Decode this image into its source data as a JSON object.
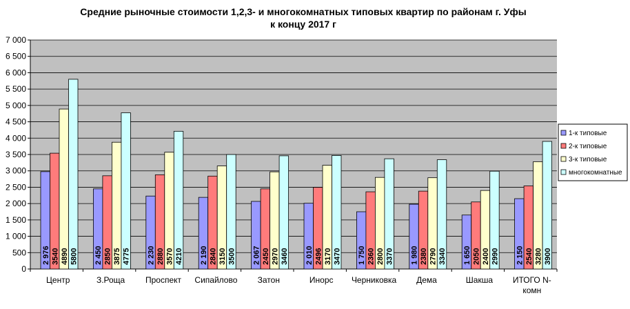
{
  "chart_data": {
    "type": "bar",
    "title": "Средние рыночные стоимости 1,2,3- и многокомнатных типовых квартир по районам г. Уфы",
    "subtitle": "к концу 2017 г",
    "xlabel": "",
    "ylabel": "",
    "ylim": [
      0,
      7000
    ],
    "yticks": [
      "0",
      "500",
      "1 000",
      "1 500",
      "2 000",
      "2 500",
      "3 000",
      "3 500",
      "4 000",
      "4 500",
      "5 000",
      "5 500",
      "6 000",
      "6 500",
      "7 000"
    ],
    "ytick_values": [
      0,
      500,
      1000,
      1500,
      2000,
      2500,
      3000,
      3500,
      4000,
      4500,
      5000,
      5500,
      6000,
      6500,
      7000
    ],
    "grid": true,
    "legend_position": "right",
    "categories": [
      [
        "Центр"
      ],
      [
        "З.Роща"
      ],
      [
        "Проспект"
      ],
      [
        "Сипайлово"
      ],
      [
        "Затон"
      ],
      [
        "Инорс"
      ],
      [
        "Черниковка"
      ],
      [
        "Дема"
      ],
      [
        "Шакша"
      ],
      [
        "ИТОГО N-",
        "комн"
      ]
    ],
    "series": [
      {
        "name": "1-к типовые",
        "color": "#9999ff",
        "values": [
          2976,
          2450,
          2230,
          2190,
          2067,
          2010,
          1750,
          1980,
          1650,
          2150
        ],
        "labels": [
          "2 976",
          "2 450",
          "2 230",
          "2 190",
          "2 067",
          "2 010",
          "1 750",
          "1 980",
          "1 650",
          "2 150"
        ]
      },
      {
        "name": "2-к типовые",
        "color": "#ff7b7b",
        "values": [
          3540,
          2850,
          2880,
          2840,
          2450,
          2496,
          2360,
          2380,
          2050,
          2540
        ],
        "labels": [
          "3540",
          "2850",
          "2880",
          "2840",
          "2450",
          "2496",
          "2360",
          "2380",
          "2050",
          "2540"
        ]
      },
      {
        "name": "3-к типовые",
        "color": "#ffffcc",
        "values": [
          4890,
          3875,
          3570,
          3150,
          2970,
          3170,
          2800,
          2790,
          2400,
          3280
        ],
        "labels": [
          "4890",
          "3875",
          "3570",
          "3150",
          "2970",
          "3170",
          "2800",
          "2790",
          "2400",
          "3280"
        ]
      },
      {
        "name": "многокомнатные",
        "color": "#ccffff",
        "values": [
          5800,
          4775,
          4210,
          3500,
          3460,
          3470,
          3370,
          3340,
          2990,
          3900
        ],
        "labels": [
          "5800",
          "4775",
          "4210",
          "3500",
          "3460",
          "3470",
          "3370",
          "3340",
          "2990",
          "3900"
        ]
      }
    ],
    "colors": {
      "plot_background": "#c0c0c0",
      "gridline": "#000000",
      "bar_stroke": "#000000"
    }
  }
}
